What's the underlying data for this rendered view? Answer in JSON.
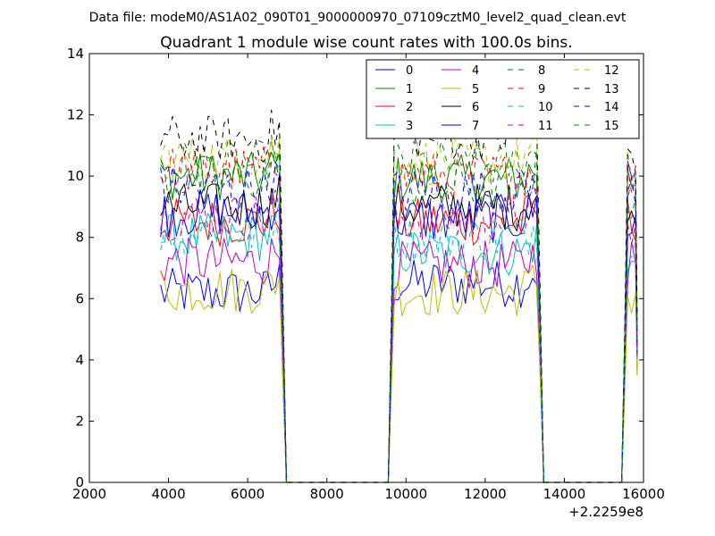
{
  "header": {
    "data_file_label": "Data file: modeM0/AS1A02_090T01_9000000970_07109cztM0_level2_quad_clean.evt"
  },
  "chart_data": {
    "type": "line",
    "title": "Quadrant 1 module wise count rates with 100.0s bins.",
    "xlabel": "",
    "ylabel": "",
    "x_offset_label": "+2.2259e8",
    "xlim": [
      2000,
      16000
    ],
    "ylim": [
      0,
      14
    ],
    "x_ticks": [
      2000,
      4000,
      6000,
      8000,
      10000,
      12000,
      14000,
      16000
    ],
    "y_ticks": [
      0,
      2,
      4,
      6,
      8,
      10,
      12,
      14
    ],
    "grid": false,
    "legend": {
      "placement": "top-right",
      "columns": 4
    },
    "segments": [
      {
        "start": 3800,
        "end": 6800
      },
      {
        "start": 9700,
        "end": 13300
      },
      {
        "start": 15600,
        "end": 15800
      }
    ],
    "series": [
      {
        "name": "0",
        "color": "#0000ff",
        "dash": false,
        "levels": [
          6.2,
          6.5,
          10.0
        ]
      },
      {
        "name": "1",
        "color": "#008000",
        "dash": false,
        "levels": [
          10.0,
          9.9,
          9.9
        ]
      },
      {
        "name": "2",
        "color": "#ff0000",
        "dash": false,
        "levels": [
          8.5,
          8.5,
          8.6
        ]
      },
      {
        "name": "3",
        "color": "#00bfbf",
        "dash": false,
        "levels": [
          8.0,
          7.5,
          7.0
        ]
      },
      {
        "name": "4",
        "color": "#bf00bf",
        "dash": false,
        "levels": [
          7.2,
          7.1,
          7.3
        ]
      },
      {
        "name": "5",
        "color": "#bfbf00",
        "dash": false,
        "levels": [
          6.3,
          6.2,
          6.1
        ]
      },
      {
        "name": "6",
        "color": "#000000",
        "dash": false,
        "levels": [
          9.0,
          9.0,
          8.4
        ]
      },
      {
        "name": "7",
        "color": "#0000ff",
        "dash": false,
        "levels": [
          8.8,
          8.6,
          8.5
        ]
      },
      {
        "name": "8",
        "color": "#008000",
        "dash": true,
        "levels": [
          10.4,
          10.4,
          9.9
        ]
      },
      {
        "name": "9",
        "color": "#ff0000",
        "dash": true,
        "levels": [
          10.2,
          10.0,
          9.8
        ]
      },
      {
        "name": "10",
        "color": "#00bfbf",
        "dash": true,
        "levels": [
          8.2,
          8.0,
          8.0
        ]
      },
      {
        "name": "11",
        "color": "#bf00bf",
        "dash": true,
        "levels": [
          8.7,
          8.6,
          8.2
        ]
      },
      {
        "name": "12",
        "color": "#bfbf00",
        "dash": true,
        "levels": [
          10.6,
          10.5,
          10.2
        ]
      },
      {
        "name": "13",
        "color": "#000000",
        "dash": true,
        "levels": [
          11.2,
          11.3,
          10.8
        ]
      },
      {
        "name": "14",
        "color": "#0000ff",
        "dash": true,
        "levels": [
          9.6,
          9.5,
          9.4
        ]
      },
      {
        "name": "15",
        "color": "#008000",
        "dash": true,
        "levels": [
          9.9,
          9.7,
          9.3
        ]
      }
    ]
  }
}
